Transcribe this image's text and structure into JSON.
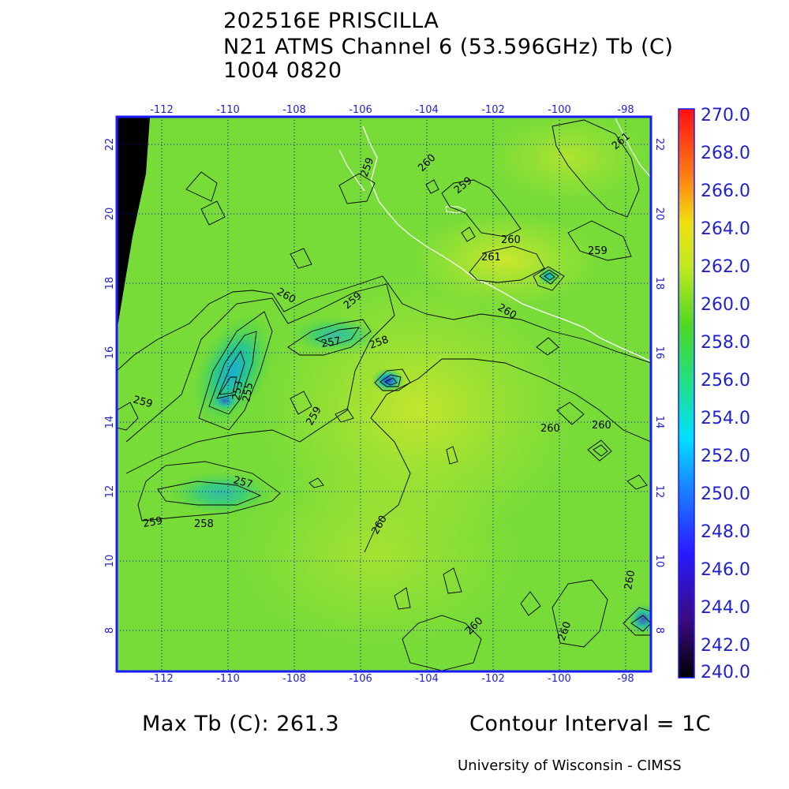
{
  "header": {
    "line1": "202516E PRISCILLA",
    "line2": "N21 ATMS Channel 6 (53.596GHz) Tb (C)",
    "line3": "1004 0820"
  },
  "footer": {
    "max_tb": "Max Tb (C): 261.3",
    "contour_interval": "Contour Interval = 1C",
    "credit": "University of Wisconsin - CIMSS"
  },
  "map": {
    "lon_labels": [
      "-112",
      "-110",
      "-108",
      "-106",
      "-104",
      "-102",
      "-100",
      "-98"
    ],
    "lat_labels": [
      "8",
      "10",
      "12",
      "14",
      "16",
      "18",
      "20",
      "22"
    ],
    "contour_labels": [
      "261",
      "261",
      "260",
      "260",
      "260",
      "260",
      "260",
      "260",
      "260",
      "260",
      "260",
      "260",
      "259",
      "259",
      "259",
      "259",
      "259",
      "259",
      "259",
      "258",
      "258",
      "257",
      "257",
      "255",
      "253"
    ],
    "colors": {
      "frame": "#1a1aff",
      "grid": "#0000cc",
      "coast": "#ffffff",
      "contour": "#000000"
    }
  },
  "colorbar": {
    "labels": [
      "270.0",
      "268.0",
      "266.0",
      "264.0",
      "262.0",
      "260.0",
      "258.0",
      "256.0",
      "254.0",
      "252.0",
      "250.0",
      "248.0",
      "246.0",
      "244.0",
      "242.0",
      "240.0"
    ],
    "label_color": "#2222cc"
  }
}
